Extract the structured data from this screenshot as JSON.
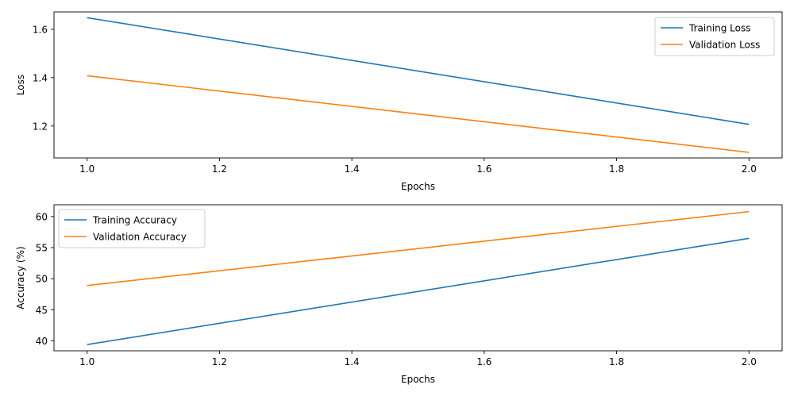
{
  "chart_data": [
    {
      "type": "line",
      "title": "",
      "xlabel": "Epochs",
      "ylabel": "Loss",
      "x": [
        1.0,
        2.0
      ],
      "xlim": [
        0.95,
        2.05
      ],
      "ylim": [
        1.068,
        1.672
      ],
      "x_ticks": [
        1.0,
        1.2,
        1.4,
        1.6,
        1.8,
        2.0
      ],
      "x_tick_labels": [
        "1.0",
        "1.2",
        "1.4",
        "1.6",
        "1.8",
        "2.0"
      ],
      "y_ticks": [
        1.2,
        1.4,
        1.6
      ],
      "y_tick_labels": [
        "1.2",
        "1.4",
        "1.6"
      ],
      "grid": false,
      "legend_position": "upper right",
      "series": [
        {
          "name": "Training Loss",
          "values": [
            1.648,
            1.207
          ],
          "color": "#1f77b4"
        },
        {
          "name": "Validation Loss",
          "values": [
            1.408,
            1.091
          ],
          "color": "#ff7f0e"
        }
      ]
    },
    {
      "type": "line",
      "title": "",
      "xlabel": "Epochs",
      "ylabel": "Accuracy (%)",
      "x": [
        1.0,
        2.0
      ],
      "xlim": [
        0.95,
        2.05
      ],
      "ylim": [
        38.4,
        61.9
      ],
      "x_ticks": [
        1.0,
        1.2,
        1.4,
        1.6,
        1.8,
        2.0
      ],
      "x_tick_labels": [
        "1.0",
        "1.2",
        "1.4",
        "1.6",
        "1.8",
        "2.0"
      ],
      "y_ticks": [
        40,
        45,
        50,
        55,
        60
      ],
      "y_tick_labels": [
        "40",
        "45",
        "50",
        "55",
        "60"
      ],
      "grid": false,
      "legend_position": "upper left",
      "series": [
        {
          "name": "Training Accuracy",
          "values": [
            39.4,
            56.5
          ],
          "color": "#1f77b4"
        },
        {
          "name": "Validation Accuracy",
          "values": [
            48.9,
            60.8
          ],
          "color": "#ff7f0e"
        }
      ]
    }
  ]
}
